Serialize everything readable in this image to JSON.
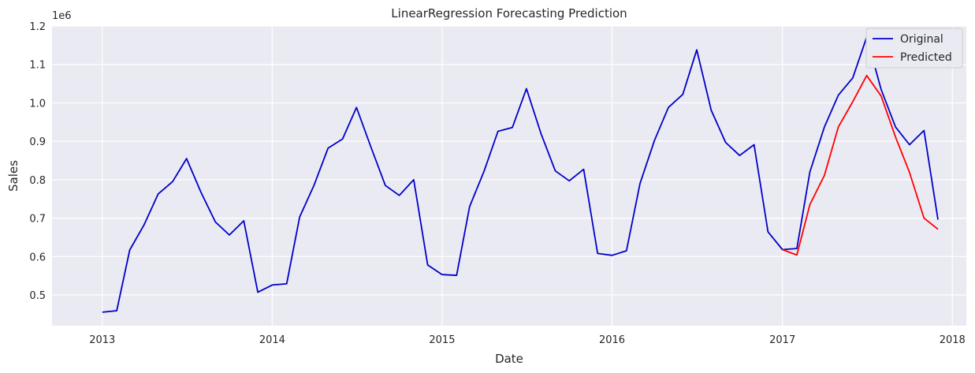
{
  "chart_data": {
    "type": "line",
    "title": "LinearRegression Forecasting Prediction",
    "xlabel": "Date",
    "ylabel": "Sales",
    "y_offset_label": "1e6",
    "xlim": [
      "2012-09-15",
      "2018-01-31"
    ],
    "ylim": [
      0.42,
      1.2
    ],
    "x_ticks": [
      "2013",
      "2014",
      "2015",
      "2016",
      "2017",
      "2018"
    ],
    "y_ticks": [
      "0.5",
      "0.6",
      "0.7",
      "0.8",
      "0.9",
      "1.0",
      "1.1",
      "1.2"
    ],
    "grid": true,
    "legend": "top-right",
    "series": [
      {
        "name": "Original",
        "color": "#0000c8",
        "x": [
          "2013-01",
          "2013-02",
          "2013-03",
          "2013-04",
          "2013-05",
          "2013-06",
          "2013-07",
          "2013-08",
          "2013-09",
          "2013-10",
          "2013-11",
          "2013-12",
          "2014-01",
          "2014-02",
          "2014-03",
          "2014-04",
          "2014-05",
          "2014-06",
          "2014-07",
          "2014-08",
          "2014-09",
          "2014-10",
          "2014-11",
          "2014-12",
          "2015-01",
          "2015-02",
          "2015-03",
          "2015-04",
          "2015-05",
          "2015-06",
          "2015-07",
          "2015-08",
          "2015-09",
          "2015-10",
          "2015-11",
          "2015-12",
          "2016-01",
          "2016-02",
          "2016-03",
          "2016-04",
          "2016-05",
          "2016-06",
          "2016-07",
          "2016-08",
          "2016-09",
          "2016-10",
          "2016-11",
          "2016-12",
          "2017-01",
          "2017-02",
          "2017-03",
          "2017-04",
          "2017-05",
          "2017-06",
          "2017-07",
          "2017-08",
          "2017-09",
          "2017-10",
          "2017-11",
          "2017-12"
        ],
        "values": [
          0.455,
          0.459,
          0.617,
          0.683,
          0.763,
          0.795,
          0.855,
          0.767,
          0.69,
          0.656,
          0.693,
          0.507,
          0.526,
          0.529,
          0.703,
          0.786,
          0.882,
          0.906,
          0.988,
          0.885,
          0.785,
          0.759,
          0.8,
          0.578,
          0.553,
          0.551,
          0.73,
          0.822,
          0.926,
          0.936,
          1.037,
          0.921,
          0.823,
          0.797,
          0.827,
          0.608,
          0.603,
          0.615,
          0.79,
          0.902,
          0.988,
          1.022,
          1.138,
          0.981,
          0.897,
          0.863,
          0.891,
          0.664,
          0.618,
          0.621,
          0.82,
          0.937,
          1.02,
          1.065,
          1.171,
          1.035,
          0.937,
          0.891,
          0.928,
          0.696
        ]
      },
      {
        "name": "Predicted",
        "color": "#ff0000",
        "x": [
          "2017-01",
          "2017-02",
          "2017-03",
          "2017-04",
          "2017-05",
          "2017-06",
          "2017-07",
          "2017-08",
          "2017-09",
          "2017-10",
          "2017-11",
          "2017-12"
        ],
        "values": [
          0.618,
          0.604,
          0.735,
          0.811,
          0.937,
          1.003,
          1.071,
          1.018,
          0.911,
          0.819,
          0.7,
          0.671
        ]
      }
    ]
  }
}
